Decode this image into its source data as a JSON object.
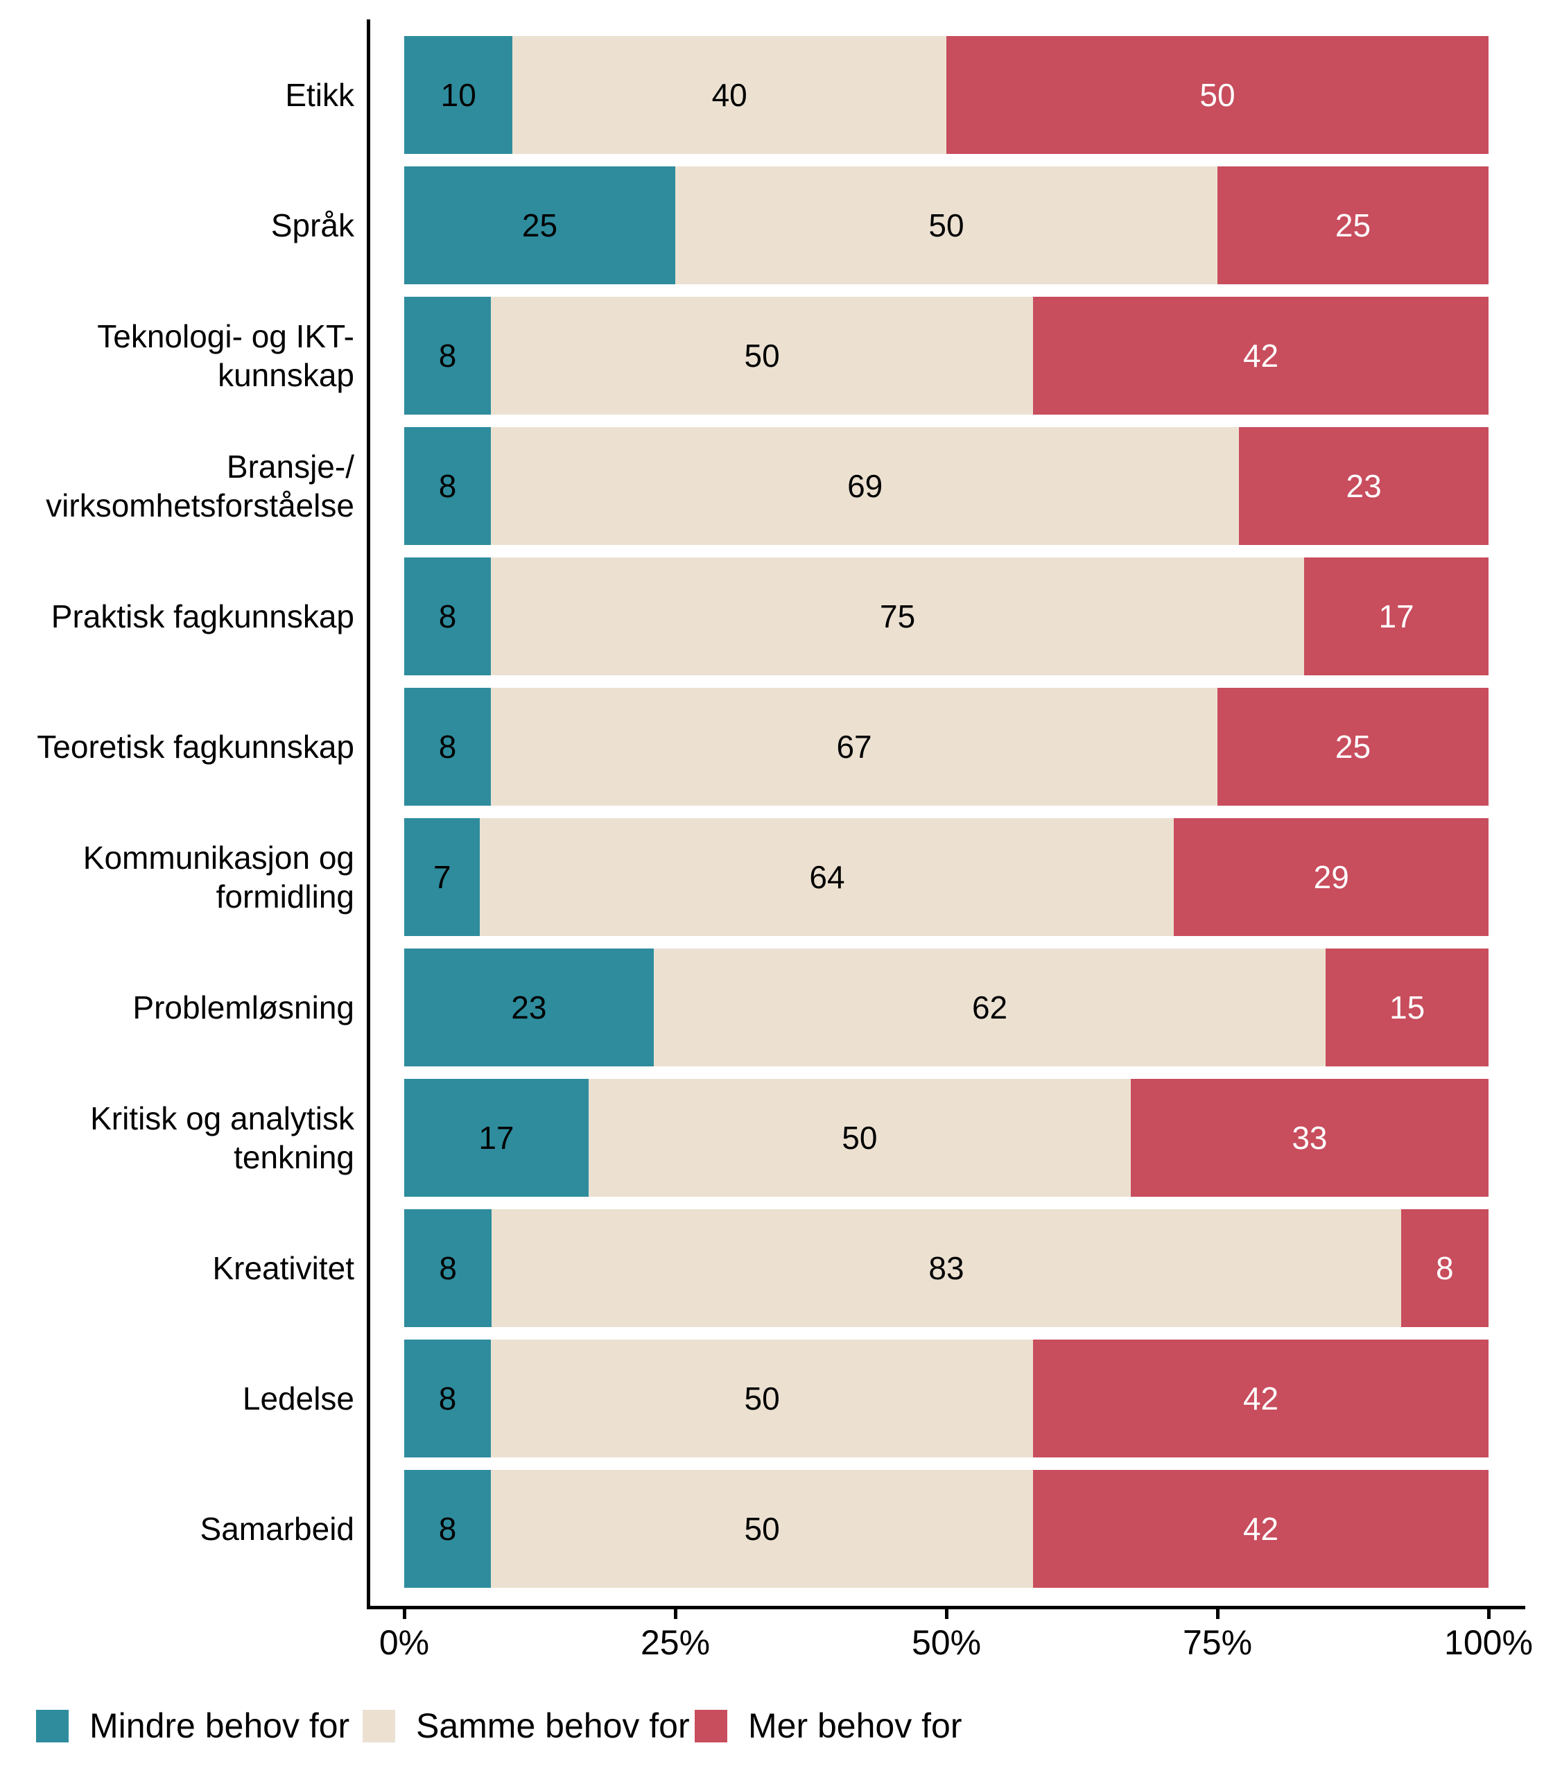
{
  "chart_data": {
    "type": "bar",
    "orientation": "horizontal_stacked",
    "title": "",
    "xlabel": "",
    "ylabel": "",
    "grid": false,
    "legend_position": "bottom-left",
    "categories": [
      [
        "Etikk"
      ],
      [
        "Språk"
      ],
      [
        "Teknologi- og IKT-",
        "kunnskap"
      ],
      [
        "Bransje-/",
        "virksomhetsforståelse"
      ],
      [
        "Praktisk fagkunnskap"
      ],
      [
        "Teoretisk fagkunnskap"
      ],
      [
        "Kommunikasjon og",
        "formidling"
      ],
      [
        "Problemløsning"
      ],
      [
        "Kritisk og analytisk",
        "tenkning"
      ],
      [
        "Kreativitet"
      ],
      [
        "Ledelse"
      ],
      [
        "Samarbeid"
      ]
    ],
    "series": [
      {
        "name": "Mindre behov for",
        "color": "#2E8C9D",
        "label_color": "#000000",
        "values": [
          10,
          25,
          8,
          8,
          8,
          8,
          7,
          23,
          17,
          8,
          8,
          8
        ]
      },
      {
        "name": "Samme behov for",
        "color": "#ECE1D1",
        "label_color": "#000000",
        "values": [
          40,
          50,
          50,
          69,
          75,
          67,
          64,
          62,
          50,
          83,
          50,
          50
        ]
      },
      {
        "name": "Mer behov for",
        "color": "#C84D5D",
        "label_color": "#FFFFFF",
        "values": [
          50,
          25,
          42,
          23,
          17,
          25,
          29,
          15,
          33,
          8,
          42,
          42
        ]
      }
    ],
    "x_axis": {
      "tick_labels": [
        "0%",
        "25%",
        "50%",
        "75%",
        "100%"
      ],
      "range": [
        0,
        100
      ],
      "unit": "percent"
    },
    "axis_color": "#000000",
    "background_color": "#FFFFFF"
  }
}
